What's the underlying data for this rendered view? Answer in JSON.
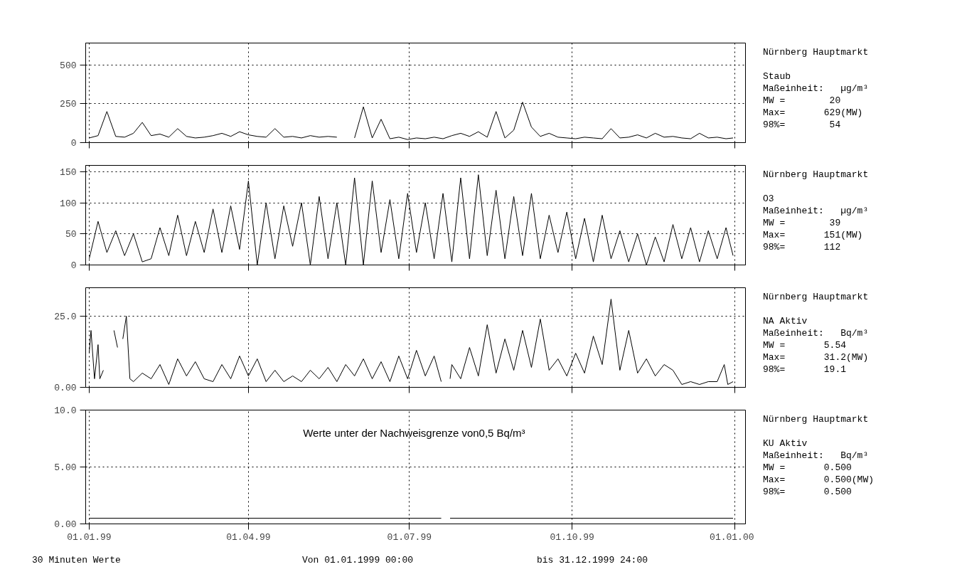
{
  "chart_data": [
    {
      "type": "line",
      "x": [
        "1999-01-01",
        "1999-01-06",
        "1999-01-11",
        "1999-01-16",
        "1999-01-21",
        "1999-01-26",
        "1999-01-31",
        "1999-02-05",
        "1999-02-10",
        "1999-02-15",
        "1999-02-20",
        "1999-02-25",
        "1999-03-02",
        "1999-03-07",
        "1999-03-12",
        "1999-03-17",
        "1999-03-22",
        "1999-03-27",
        "1999-04-01",
        "1999-04-06",
        "1999-04-11",
        "1999-04-16",
        "1999-04-21",
        "1999-04-26",
        "1999-05-01",
        "1999-05-06",
        "1999-05-11",
        "1999-05-16",
        "1999-05-21",
        "1999-05-26",
        "1999-05-31",
        "1999-06-05",
        "1999-06-10",
        "1999-06-15",
        "1999-06-20",
        "1999-06-25",
        "1999-06-30",
        "1999-07-05",
        "1999-07-10",
        "1999-07-15",
        "1999-07-20",
        "1999-07-25",
        "1999-07-30",
        "1999-08-04",
        "1999-08-09",
        "1999-08-14",
        "1999-08-19",
        "1999-08-24",
        "1999-08-29",
        "1999-09-03",
        "1999-09-08",
        "1999-09-13",
        "1999-09-18",
        "1999-09-23",
        "1999-09-28",
        "1999-10-03",
        "1999-10-08",
        "1999-10-13",
        "1999-10-18",
        "1999-10-23",
        "1999-10-28",
        "1999-11-02",
        "1999-11-07",
        "1999-11-12",
        "1999-11-17",
        "1999-11-22",
        "1999-11-27",
        "1999-12-02",
        "1999-12-07",
        "1999-12-12",
        "1999-12-17",
        "1999-12-22",
        "1999-12-27",
        "1999-12-31"
      ],
      "series": [
        {
          "color": "#000000",
          "values": [
            30,
            45,
            200,
            40,
            35,
            60,
            130,
            45,
            55,
            35,
            90,
            40,
            30,
            35,
            45,
            60,
            40,
            70,
            50,
            40,
            35,
            90,
            35,
            40,
            30,
            45,
            35,
            40,
            35,
            null,
            30,
            230,
            30,
            150,
            25,
            35,
            20,
            30,
            25,
            35,
            25,
            45,
            60,
            40,
            70,
            35,
            200,
            30,
            80,
            260,
            100,
            40,
            60,
            35,
            30,
            25,
            35,
            30,
            25,
            90,
            30,
            35,
            50,
            30,
            60,
            35,
            40,
            30,
            25,
            60,
            30,
            35,
            25,
            30
          ]
        }
      ],
      "xlim": [
        "1998-12-30",
        "2000-01-07"
      ],
      "xticks": [
        {
          "value": "1999-01-01",
          "label": null
        },
        {
          "value": "1999-04-01",
          "label": null
        },
        {
          "value": "1999-07-01",
          "label": null
        },
        {
          "value": "1999-10-01",
          "label": null
        },
        {
          "value": "2000-01-01",
          "label": null
        }
      ],
      "ylim": [
        0,
        640
      ],
      "yticks": [
        0,
        250,
        500
      ],
      "grid": true,
      "line_style": "solid",
      "tick_labels": "y"
    },
    {
      "type": "other",
      "title": "Nürnberg Hauptmarkt",
      "subtitle": "Staub",
      "annotations": [
        "Maßeinheit:   µg/m³",
        "MW =        20",
        "Max=       629(MW)",
        "98%=        54"
      ]
    },
    {
      "type": "line",
      "x": [
        "1999-01-01",
        "1999-01-06",
        "1999-01-11",
        "1999-01-16",
        "1999-01-21",
        "1999-01-26",
        "1999-01-31",
        "1999-02-05",
        "1999-02-10",
        "1999-02-15",
        "1999-02-20",
        "1999-02-25",
        "1999-03-02",
        "1999-03-07",
        "1999-03-12",
        "1999-03-17",
        "1999-03-22",
        "1999-03-27",
        "1999-04-01",
        "1999-04-06",
        "1999-04-11",
        "1999-04-16",
        "1999-04-21",
        "1999-04-26",
        "1999-05-01",
        "1999-05-06",
        "1999-05-11",
        "1999-05-16",
        "1999-05-21",
        "1999-05-26",
        "1999-05-31",
        "1999-06-05",
        "1999-06-10",
        "1999-06-15",
        "1999-06-20",
        "1999-06-25",
        "1999-06-30",
        "1999-07-05",
        "1999-07-10",
        "1999-07-15",
        "1999-07-20",
        "1999-07-25",
        "1999-07-30",
        "1999-08-04",
        "1999-08-09",
        "1999-08-14",
        "1999-08-19",
        "1999-08-24",
        "1999-08-29",
        "1999-09-03",
        "1999-09-08",
        "1999-09-13",
        "1999-09-18",
        "1999-09-23",
        "1999-09-28",
        "1999-10-03",
        "1999-10-08",
        "1999-10-13",
        "1999-10-18",
        "1999-10-23",
        "1999-10-28",
        "1999-11-02",
        "1999-11-07",
        "1999-11-12",
        "1999-11-17",
        "1999-11-22",
        "1999-11-27",
        "1999-12-02",
        "1999-12-07",
        "1999-12-12",
        "1999-12-17",
        "1999-12-22",
        "1999-12-27",
        "1999-12-31"
      ],
      "series": [
        {
          "color": "#000000",
          "values": [
            10,
            70,
            20,
            55,
            15,
            50,
            5,
            10,
            60,
            15,
            80,
            15,
            70,
            20,
            90,
            20,
            95,
            25,
            135,
            0,
            100,
            10,
            95,
            30,
            100,
            0,
            110,
            10,
            100,
            0,
            140,
            0,
            135,
            20,
            105,
            10,
            115,
            20,
            100,
            10,
            115,
            5,
            140,
            10,
            145,
            15,
            120,
            10,
            110,
            15,
            115,
            10,
            80,
            20,
            85,
            10,
            75,
            5,
            80,
            10,
            55,
            5,
            50,
            0,
            45,
            5,
            65,
            10,
            60,
            5,
            55,
            10,
            60,
            15
          ]
        }
      ],
      "xlim": [
        "1998-12-30",
        "2000-01-07"
      ],
      "xticks": [
        {
          "value": "1999-01-01",
          "label": null
        },
        {
          "value": "1999-04-01",
          "label": null
        },
        {
          "value": "1999-07-01",
          "label": null
        },
        {
          "value": "1999-10-01",
          "label": null
        },
        {
          "value": "2000-01-01",
          "label": null
        }
      ],
      "ylim": [
        0,
        160
      ],
      "yticks": [
        0,
        50,
        100,
        150
      ],
      "grid": true,
      "line_style": "solid",
      "tick_labels": "y"
    },
    {
      "type": "other",
      "title": "Nürnberg Hauptmarkt",
      "subtitle": "O3",
      "annotations": [
        "Maßeinheit:   µg/m³",
        "MW =        39",
        "Max=       151(MW)",
        "98%=       112"
      ]
    },
    {
      "type": "line",
      "series": [
        {
          "color": "#000000",
          "x": [
            "1999-01-01",
            "1999-01-02",
            "1999-01-04",
            "1999-01-06",
            "1999-01-07",
            "1999-01-09",
            "1999-01-10",
            "1999-01-15",
            "1999-01-17",
            "1999-01-18",
            "1999-01-20",
            "1999-01-22",
            "1999-01-24",
            "1999-01-26",
            "1999-01-31",
            "1999-02-05",
            "1999-02-10",
            "1999-02-15",
            "1999-02-20",
            "1999-02-25",
            "1999-03-02",
            "1999-03-07",
            "1999-03-12",
            "1999-03-17",
            "1999-03-22",
            "1999-03-27",
            "1999-04-01",
            "1999-04-06",
            "1999-04-11",
            "1999-04-16",
            "1999-04-21",
            "1999-04-26",
            "1999-05-01",
            "1999-05-06",
            "1999-05-11",
            "1999-05-16",
            "1999-05-21",
            "1999-05-26",
            "1999-05-31",
            "1999-06-05",
            "1999-06-10",
            "1999-06-15",
            "1999-06-20",
            "1999-06-25",
            "1999-06-30",
            "1999-07-05",
            "1999-07-10",
            "1999-07-15",
            "1999-07-19",
            "1999-07-20",
            "1999-07-24",
            "1999-07-25",
            "1999-07-30",
            "1999-08-04",
            "1999-08-09",
            "1999-08-14",
            "1999-08-19",
            "1999-08-24",
            "1999-08-29",
            "1999-09-03",
            "1999-09-08",
            "1999-09-13",
            "1999-09-18",
            "1999-09-23",
            "1999-09-28",
            "1999-10-03",
            "1999-10-08",
            "1999-10-13",
            "1999-10-18",
            "1999-10-23",
            "1999-10-28",
            "1999-11-02",
            "1999-11-07",
            "1999-11-12",
            "1999-11-17",
            "1999-11-22",
            "1999-11-27",
            "1999-12-02",
            "1999-12-07",
            "1999-12-12",
            "1999-12-17",
            "1999-12-22",
            "1999-12-26",
            "1999-12-28",
            "1999-12-31"
          ],
          "values": [
            12,
            20,
            3,
            15,
            3,
            6,
            null,
            20,
            14,
            null,
            17,
            25,
            3,
            2,
            5,
            3,
            8,
            1,
            10,
            4,
            9,
            3,
            2,
            8,
            3,
            11,
            4,
            10,
            2,
            6,
            2,
            4,
            2,
            6,
            3,
            7,
            2,
            8,
            4,
            10,
            3,
            9,
            2,
            11,
            3,
            13,
            4,
            11,
            2,
            null,
            3,
            8,
            3,
            14,
            4,
            22,
            5,
            17,
            6,
            20,
            7,
            24,
            6,
            10,
            4,
            12,
            5,
            18,
            8,
            31,
            6,
            20,
            5,
            10,
            4,
            8,
            6,
            1,
            2,
            1,
            2,
            2,
            8,
            1,
            2
          ]
        }
      ],
      "xlim": [
        "1998-12-30",
        "2000-01-07"
      ],
      "xticks": [
        {
          "value": "1999-01-01",
          "label": null
        },
        {
          "value": "1999-04-01",
          "label": null
        },
        {
          "value": "1999-07-01",
          "label": null
        },
        {
          "value": "1999-10-01",
          "label": null
        },
        {
          "value": "2000-01-01",
          "label": null
        }
      ],
      "ylim": [
        0,
        35
      ],
      "yticks": [
        {
          "value": 0,
          "label": "0.00"
        },
        {
          "value": 25,
          "label": "25.0"
        }
      ],
      "grid": true,
      "line_style": "solid",
      "tick_labels": "y"
    },
    {
      "type": "other",
      "title": "Nürnberg Hauptmarkt",
      "subtitle": "NA Aktiv",
      "annotations": [
        "Maßeinheit:   Bq/m³",
        "MW =       5.54",
        "Max=       31.2(MW)",
        "98%=       19.1"
      ]
    },
    {
      "type": "line",
      "annotations": [
        "Werte unter der Nachweisgrenze  von0,5 Bq/m³"
      ],
      "series": [
        {
          "color": "#000000",
          "x": [
            "1999-01-01",
            "1999-07-19",
            "1999-07-21",
            "1999-07-24",
            "1999-12-31"
          ],
          "values": [
            0.5,
            0.5,
            null,
            0.5,
            0.5
          ]
        }
      ],
      "xlim": [
        "1998-12-30",
        "2000-01-07"
      ],
      "xticks": [
        {
          "value": "1999-01-01",
          "label": "01.01.99"
        },
        {
          "value": "1999-04-01",
          "label": "01.04.99"
        },
        {
          "value": "1999-07-01",
          "label": "01.07.99"
        },
        {
          "value": "1999-10-01",
          "label": "01.10.99"
        },
        {
          "value": "2000-01-01",
          "label": "01.01.00"
        }
      ],
      "ylim": [
        0,
        10
      ],
      "yticks": [
        {
          "value": 0,
          "label": "0.00"
        },
        {
          "value": 5,
          "label": "5.00"
        },
        {
          "value": 10,
          "label": "10.0"
        }
      ],
      "grid": true,
      "line_style": "solid"
    },
    {
      "type": "other",
      "title": "Nürnberg Hauptmarkt",
      "subtitle": "KU Aktiv",
      "annotations": [
        "Maßeinheit:   Bq/m³",
        "MW =       0.500",
        "Max=       0.500(MW)",
        "98%=       0.500"
      ]
    },
    {
      "type": "other",
      "annotations": [
        "30 Minuten Werte",
        "Von 01.01.1999 00:00",
        "bis 31.12.1999 24:00"
      ]
    }
  ]
}
